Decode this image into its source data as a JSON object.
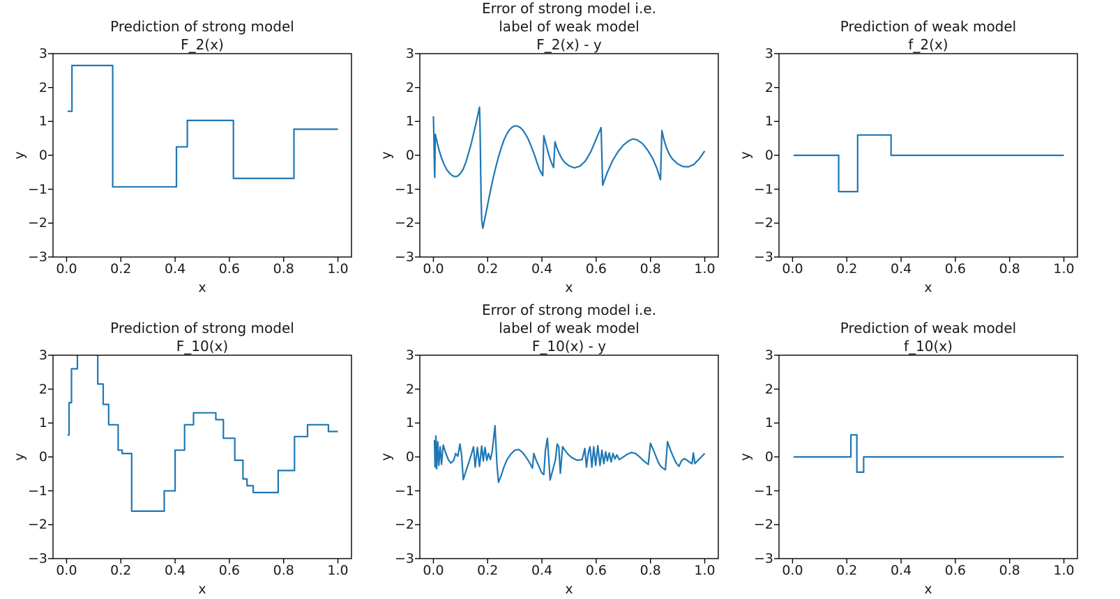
{
  "figure": {
    "background": "#ffffff",
    "line_color": "#1f77b4",
    "spine_color": "#000000",
    "text_color": "#1a1a1a",
    "xticks": {
      "values": [
        0.0,
        0.2,
        0.4,
        0.6,
        0.8,
        1.0
      ],
      "labels": [
        "0.0",
        "0.2",
        "0.4",
        "0.6",
        "0.8",
        "1.0"
      ]
    },
    "yticks": {
      "values": [
        3,
        2,
        1,
        0,
        -1,
        -2,
        -3
      ],
      "labels": [
        "3",
        "2",
        "1",
        "0",
        "−1",
        "−2",
        "−3"
      ]
    }
  },
  "chart_data": [
    {
      "id": "F_2",
      "type": "line",
      "subtype": "step",
      "row": 0,
      "col": 0,
      "title": "Prediction of strong model\nF_2(x)",
      "xlabel": "x",
      "ylabel": "y",
      "xlim": [
        -0.05,
        1.05
      ],
      "ylim": [
        -3,
        3
      ],
      "grid": false,
      "legend": "none",
      "points": [
        [
          0.004,
          1.3
        ],
        [
          0.02,
          1.3
        ],
        [
          0.02,
          2.65
        ],
        [
          0.17,
          2.65
        ],
        [
          0.17,
          -0.93
        ],
        [
          0.405,
          -0.93
        ],
        [
          0.405,
          0.25
        ],
        [
          0.445,
          0.25
        ],
        [
          0.445,
          1.03
        ],
        [
          0.615,
          1.03
        ],
        [
          0.615,
          -0.68
        ],
        [
          0.838,
          -0.68
        ],
        [
          0.838,
          0.77
        ],
        [
          1.0,
          0.77
        ]
      ]
    },
    {
      "id": "F_2_minus_y",
      "type": "line",
      "subtype": "curve",
      "row": 0,
      "col": 1,
      "title": "Error of strong model i.e.\nlabel of weak model\nF_2(x) - y",
      "xlabel": "x",
      "ylabel": "y",
      "xlim": [
        -0.05,
        1.05
      ],
      "ylim": [
        -3,
        3
      ],
      "grid": false,
      "legend": "none",
      "points": [
        [
          0.0,
          1.15
        ],
        [
          0.002,
          0.5
        ],
        [
          0.004,
          -0.4
        ],
        [
          0.005,
          -0.65
        ],
        [
          0.007,
          0.62
        ],
        [
          0.012,
          0.45
        ],
        [
          0.02,
          0.18
        ],
        [
          0.03,
          -0.08
        ],
        [
          0.04,
          -0.28
        ],
        [
          0.05,
          -0.43
        ],
        [
          0.06,
          -0.53
        ],
        [
          0.07,
          -0.6
        ],
        [
          0.08,
          -0.63
        ],
        [
          0.09,
          -0.61
        ],
        [
          0.1,
          -0.53
        ],
        [
          0.11,
          -0.4
        ],
        [
          0.12,
          -0.2
        ],
        [
          0.13,
          0.07
        ],
        [
          0.14,
          0.36
        ],
        [
          0.15,
          0.7
        ],
        [
          0.16,
          1.05
        ],
        [
          0.17,
          1.42
        ],
        [
          0.172,
          0.8
        ],
        [
          0.174,
          -0.4
        ],
        [
          0.176,
          -1.3
        ],
        [
          0.178,
          -1.9
        ],
        [
          0.182,
          -2.15
        ],
        [
          0.19,
          -1.85
        ],
        [
          0.2,
          -1.45
        ],
        [
          0.21,
          -1.05
        ],
        [
          0.22,
          -0.68
        ],
        [
          0.23,
          -0.35
        ],
        [
          0.24,
          -0.05
        ],
        [
          0.25,
          0.22
        ],
        [
          0.26,
          0.45
        ],
        [
          0.27,
          0.62
        ],
        [
          0.28,
          0.75
        ],
        [
          0.29,
          0.83
        ],
        [
          0.3,
          0.87
        ],
        [
          0.31,
          0.86
        ],
        [
          0.32,
          0.82
        ],
        [
          0.33,
          0.74
        ],
        [
          0.34,
          0.62
        ],
        [
          0.35,
          0.47
        ],
        [
          0.36,
          0.28
        ],
        [
          0.37,
          0.07
        ],
        [
          0.38,
          -0.17
        ],
        [
          0.39,
          -0.4
        ],
        [
          0.403,
          -0.6
        ],
        [
          0.407,
          0.58
        ],
        [
          0.415,
          0.33
        ],
        [
          0.425,
          0.02
        ],
        [
          0.435,
          -0.22
        ],
        [
          0.443,
          -0.36
        ],
        [
          0.448,
          0.4
        ],
        [
          0.455,
          0.22
        ],
        [
          0.465,
          0.03
        ],
        [
          0.475,
          -0.12
        ],
        [
          0.485,
          -0.22
        ],
        [
          0.5,
          -0.31
        ],
        [
          0.52,
          -0.37
        ],
        [
          0.54,
          -0.32
        ],
        [
          0.56,
          -0.17
        ],
        [
          0.58,
          0.1
        ],
        [
          0.6,
          0.48
        ],
        [
          0.618,
          0.82
        ],
        [
          0.624,
          -0.88
        ],
        [
          0.64,
          -0.52
        ],
        [
          0.66,
          -0.16
        ],
        [
          0.68,
          0.1
        ],
        [
          0.7,
          0.3
        ],
        [
          0.72,
          0.43
        ],
        [
          0.735,
          0.48
        ],
        [
          0.75,
          0.46
        ],
        [
          0.77,
          0.35
        ],
        [
          0.79,
          0.15
        ],
        [
          0.81,
          -0.12
        ],
        [
          0.825,
          -0.42
        ],
        [
          0.837,
          -0.72
        ],
        [
          0.842,
          0.73
        ],
        [
          0.85,
          0.45
        ],
        [
          0.86,
          0.2
        ],
        [
          0.87,
          0.02
        ],
        [
          0.88,
          -0.1
        ],
        [
          0.9,
          -0.25
        ],
        [
          0.92,
          -0.33
        ],
        [
          0.94,
          -0.34
        ],
        [
          0.96,
          -0.27
        ],
        [
          0.98,
          -0.1
        ],
        [
          1.0,
          0.13
        ]
      ]
    },
    {
      "id": "f_2",
      "type": "line",
      "subtype": "step",
      "row": 0,
      "col": 2,
      "title": "Prediction of weak model\nf_2(x)",
      "xlabel": "x",
      "ylabel": "y",
      "xlim": [
        -0.05,
        1.05
      ],
      "ylim": [
        -3,
        3
      ],
      "grid": false,
      "legend": "none",
      "points": [
        [
          0.004,
          0
        ],
        [
          0.17,
          0
        ],
        [
          0.17,
          -1.07
        ],
        [
          0.24,
          -1.07
        ],
        [
          0.24,
          0.6
        ],
        [
          0.363,
          0.6
        ],
        [
          0.363,
          0
        ],
        [
          1.0,
          0
        ]
      ]
    },
    {
      "id": "F_10",
      "type": "line",
      "subtype": "step",
      "row": 1,
      "col": 0,
      "title": "Prediction of strong model\nF_10(x)",
      "xlabel": "x",
      "ylabel": "y",
      "xlim": [
        -0.05,
        1.05
      ],
      "ylim": [
        -3,
        3
      ],
      "grid": false,
      "legend": "none",
      "points": [
        [
          0.004,
          0.65
        ],
        [
          0.009,
          0.65
        ],
        [
          0.009,
          1.6
        ],
        [
          0.018,
          1.6
        ],
        [
          0.018,
          2.6
        ],
        [
          0.04,
          2.6
        ],
        [
          0.04,
          3.35
        ],
        [
          0.115,
          3.35
        ],
        [
          0.115,
          2.15
        ],
        [
          0.135,
          2.15
        ],
        [
          0.135,
          1.55
        ],
        [
          0.155,
          1.55
        ],
        [
          0.155,
          0.95
        ],
        [
          0.19,
          0.95
        ],
        [
          0.19,
          0.2
        ],
        [
          0.205,
          0.2
        ],
        [
          0.205,
          0.1
        ],
        [
          0.24,
          0.1
        ],
        [
          0.24,
          -1.6
        ],
        [
          0.36,
          -1.6
        ],
        [
          0.36,
          -1.0
        ],
        [
          0.4,
          -1.0
        ],
        [
          0.4,
          0.2
        ],
        [
          0.435,
          0.2
        ],
        [
          0.435,
          0.95
        ],
        [
          0.468,
          0.95
        ],
        [
          0.468,
          1.3
        ],
        [
          0.55,
          1.3
        ],
        [
          0.55,
          1.1
        ],
        [
          0.578,
          1.1
        ],
        [
          0.578,
          0.55
        ],
        [
          0.62,
          0.55
        ],
        [
          0.62,
          -0.1
        ],
        [
          0.65,
          -0.1
        ],
        [
          0.65,
          -0.65
        ],
        [
          0.665,
          -0.65
        ],
        [
          0.665,
          -0.85
        ],
        [
          0.688,
          -0.85
        ],
        [
          0.688,
          -1.05
        ],
        [
          0.78,
          -1.05
        ],
        [
          0.78,
          -0.4
        ],
        [
          0.84,
          -0.4
        ],
        [
          0.84,
          0.6
        ],
        [
          0.888,
          0.6
        ],
        [
          0.888,
          0.95
        ],
        [
          0.965,
          0.95
        ],
        [
          0.965,
          0.75
        ],
        [
          1.0,
          0.75
        ]
      ]
    },
    {
      "id": "F_10_minus_y",
      "type": "line",
      "subtype": "curve",
      "row": 1,
      "col": 1,
      "title": "Error of strong model i.e.\nlabel of weak model\nF_10(x) - y",
      "xlabel": "x",
      "ylabel": "y",
      "xlim": [
        -0.05,
        1.05
      ],
      "ylim": [
        -3,
        3
      ],
      "grid": false,
      "legend": "none",
      "points": [
        [
          0.004,
          0.5
        ],
        [
          0.006,
          -0.3
        ],
        [
          0.009,
          0.62
        ],
        [
          0.012,
          -0.35
        ],
        [
          0.016,
          0.45
        ],
        [
          0.02,
          -0.25
        ],
        [
          0.025,
          0.3
        ],
        [
          0.03,
          -0.22
        ],
        [
          0.036,
          0.35
        ],
        [
          0.045,
          0.12
        ],
        [
          0.055,
          -0.08
        ],
        [
          0.065,
          -0.18
        ],
        [
          0.075,
          -0.1
        ],
        [
          0.082,
          0.1
        ],
        [
          0.09,
          0.02
        ],
        [
          0.098,
          0.38
        ],
        [
          0.104,
          0.05
        ],
        [
          0.11,
          -0.67
        ],
        [
          0.12,
          -0.42
        ],
        [
          0.13,
          -0.18
        ],
        [
          0.14,
          0.08
        ],
        [
          0.148,
          0.3
        ],
        [
          0.154,
          -0.3
        ],
        [
          0.162,
          0.28
        ],
        [
          0.17,
          -0.28
        ],
        [
          0.178,
          0.32
        ],
        [
          0.184,
          -0.12
        ],
        [
          0.19,
          0.28
        ],
        [
          0.197,
          -0.1
        ],
        [
          0.203,
          0.1
        ],
        [
          0.21,
          -0.08
        ],
        [
          0.217,
          0.18
        ],
        [
          0.227,
          0.92
        ],
        [
          0.234,
          -0.2
        ],
        [
          0.24,
          -0.75
        ],
        [
          0.25,
          -0.55
        ],
        [
          0.26,
          -0.3
        ],
        [
          0.27,
          -0.1
        ],
        [
          0.285,
          0.08
        ],
        [
          0.3,
          0.2
        ],
        [
          0.315,
          0.22
        ],
        [
          0.33,
          0.12
        ],
        [
          0.345,
          -0.05
        ],
        [
          0.358,
          -0.22
        ],
        [
          0.365,
          -0.33
        ],
        [
          0.37,
          0.1
        ],
        [
          0.378,
          -0.08
        ],
        [
          0.39,
          -0.3
        ],
        [
          0.4,
          -0.48
        ],
        [
          0.407,
          -0.52
        ],
        [
          0.413,
          0.2
        ],
        [
          0.42,
          0.55
        ],
        [
          0.426,
          -0.15
        ],
        [
          0.43,
          -0.68
        ],
        [
          0.44,
          -0.38
        ],
        [
          0.45,
          -0.08
        ],
        [
          0.456,
          0.38
        ],
        [
          0.462,
          0.3
        ],
        [
          0.468,
          -0.48
        ],
        [
          0.476,
          0.3
        ],
        [
          0.486,
          0.18
        ],
        [
          0.496,
          0.08
        ],
        [
          0.51,
          -0.02
        ],
        [
          0.53,
          -0.1
        ],
        [
          0.548,
          -0.08
        ],
        [
          0.558,
          0.25
        ],
        [
          0.564,
          -0.3
        ],
        [
          0.571,
          0.12
        ],
        [
          0.577,
          0.3
        ],
        [
          0.584,
          -0.3
        ],
        [
          0.591,
          0.3
        ],
        [
          0.598,
          -0.25
        ],
        [
          0.606,
          0.33
        ],
        [
          0.614,
          -0.25
        ],
        [
          0.621,
          0.2
        ],
        [
          0.628,
          -0.2
        ],
        [
          0.635,
          0.15
        ],
        [
          0.641,
          -0.12
        ],
        [
          0.648,
          0.12
        ],
        [
          0.655,
          -0.15
        ],
        [
          0.662,
          0.1
        ],
        [
          0.669,
          -0.06
        ],
        [
          0.676,
          0.06
        ],
        [
          0.685,
          -0.08
        ],
        [
          0.7,
          0.0
        ],
        [
          0.715,
          0.08
        ],
        [
          0.73,
          0.13
        ],
        [
          0.745,
          0.1
        ],
        [
          0.76,
          0.0
        ],
        [
          0.775,
          -0.12
        ],
        [
          0.792,
          -0.22
        ],
        [
          0.8,
          0.4
        ],
        [
          0.81,
          0.22
        ],
        [
          0.82,
          0.02
        ],
        [
          0.83,
          -0.18
        ],
        [
          0.84,
          -0.3
        ],
        [
          0.855,
          -0.38
        ],
        [
          0.863,
          0.45
        ],
        [
          0.873,
          0.22
        ],
        [
          0.883,
          0.02
        ],
        [
          0.895,
          -0.18
        ],
        [
          0.905,
          -0.28
        ],
        [
          0.915,
          -0.1
        ],
        [
          0.925,
          -0.05
        ],
        [
          0.935,
          -0.1
        ],
        [
          0.945,
          -0.16
        ],
        [
          0.953,
          -0.2
        ],
        [
          0.958,
          0.12
        ],
        [
          0.964,
          -0.2
        ],
        [
          0.973,
          -0.12
        ],
        [
          0.985,
          -0.02
        ],
        [
          1.0,
          0.1
        ]
      ]
    },
    {
      "id": "f_10",
      "type": "line",
      "subtype": "step",
      "row": 1,
      "col": 2,
      "title": "Prediction of weak model\nf_10(x)",
      "xlabel": "x",
      "ylabel": "y",
      "xlim": [
        -0.05,
        1.05
      ],
      "ylim": [
        -3,
        3
      ],
      "grid": false,
      "legend": "none",
      "points": [
        [
          0.004,
          0
        ],
        [
          0.215,
          0
        ],
        [
          0.215,
          0.65
        ],
        [
          0.237,
          0.65
        ],
        [
          0.237,
          -0.45
        ],
        [
          0.262,
          -0.45
        ],
        [
          0.262,
          0
        ],
        [
          1.0,
          0
        ]
      ]
    }
  ]
}
